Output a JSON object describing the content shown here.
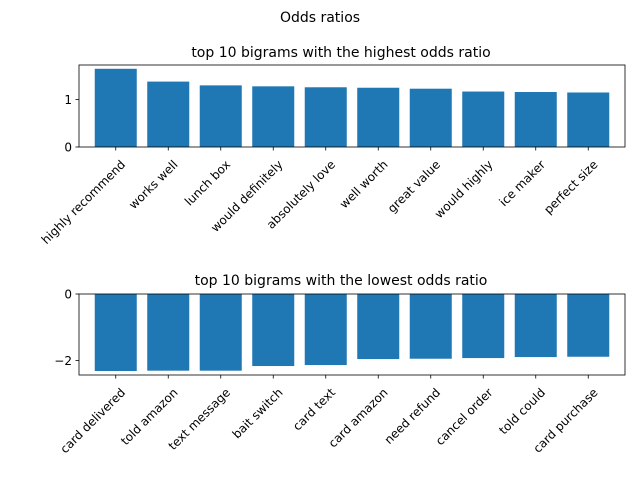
{
  "figure": {
    "suptitle": "Odds ratios"
  },
  "chart_data": [
    {
      "type": "bar",
      "title": "top 10 bigrams with the highest odds ratio",
      "xlabel": "",
      "ylabel": "",
      "categories": [
        "highly recommend",
        "works well",
        "lunch box",
        "would definitely",
        "absolutely love",
        "well worth",
        "great value",
        "would highly",
        "ice maker",
        "perfect size"
      ],
      "values": [
        1.65,
        1.38,
        1.3,
        1.28,
        1.26,
        1.25,
        1.23,
        1.17,
        1.16,
        1.15
      ],
      "ylim": [
        0,
        1.73
      ],
      "yticks": [
        0,
        1
      ],
      "color": "#1f77b4",
      "grid": false
    },
    {
      "type": "bar",
      "title": "top 10 bigrams with the lowest odds ratio",
      "xlabel": "",
      "ylabel": "",
      "categories": [
        "card delivered",
        "told amazon",
        "text message",
        "bait switch",
        "card text",
        "card amazon",
        "need refund",
        "cancel order",
        "told could",
        "card purchase"
      ],
      "values": [
        -2.32,
        -2.31,
        -2.31,
        -2.17,
        -2.14,
        -1.96,
        -1.95,
        -1.93,
        -1.9,
        -1.89
      ],
      "ylim": [
        -2.44,
        0
      ],
      "yticks": [
        0,
        -2
      ],
      "color": "#1f77b4",
      "grid": false
    }
  ]
}
